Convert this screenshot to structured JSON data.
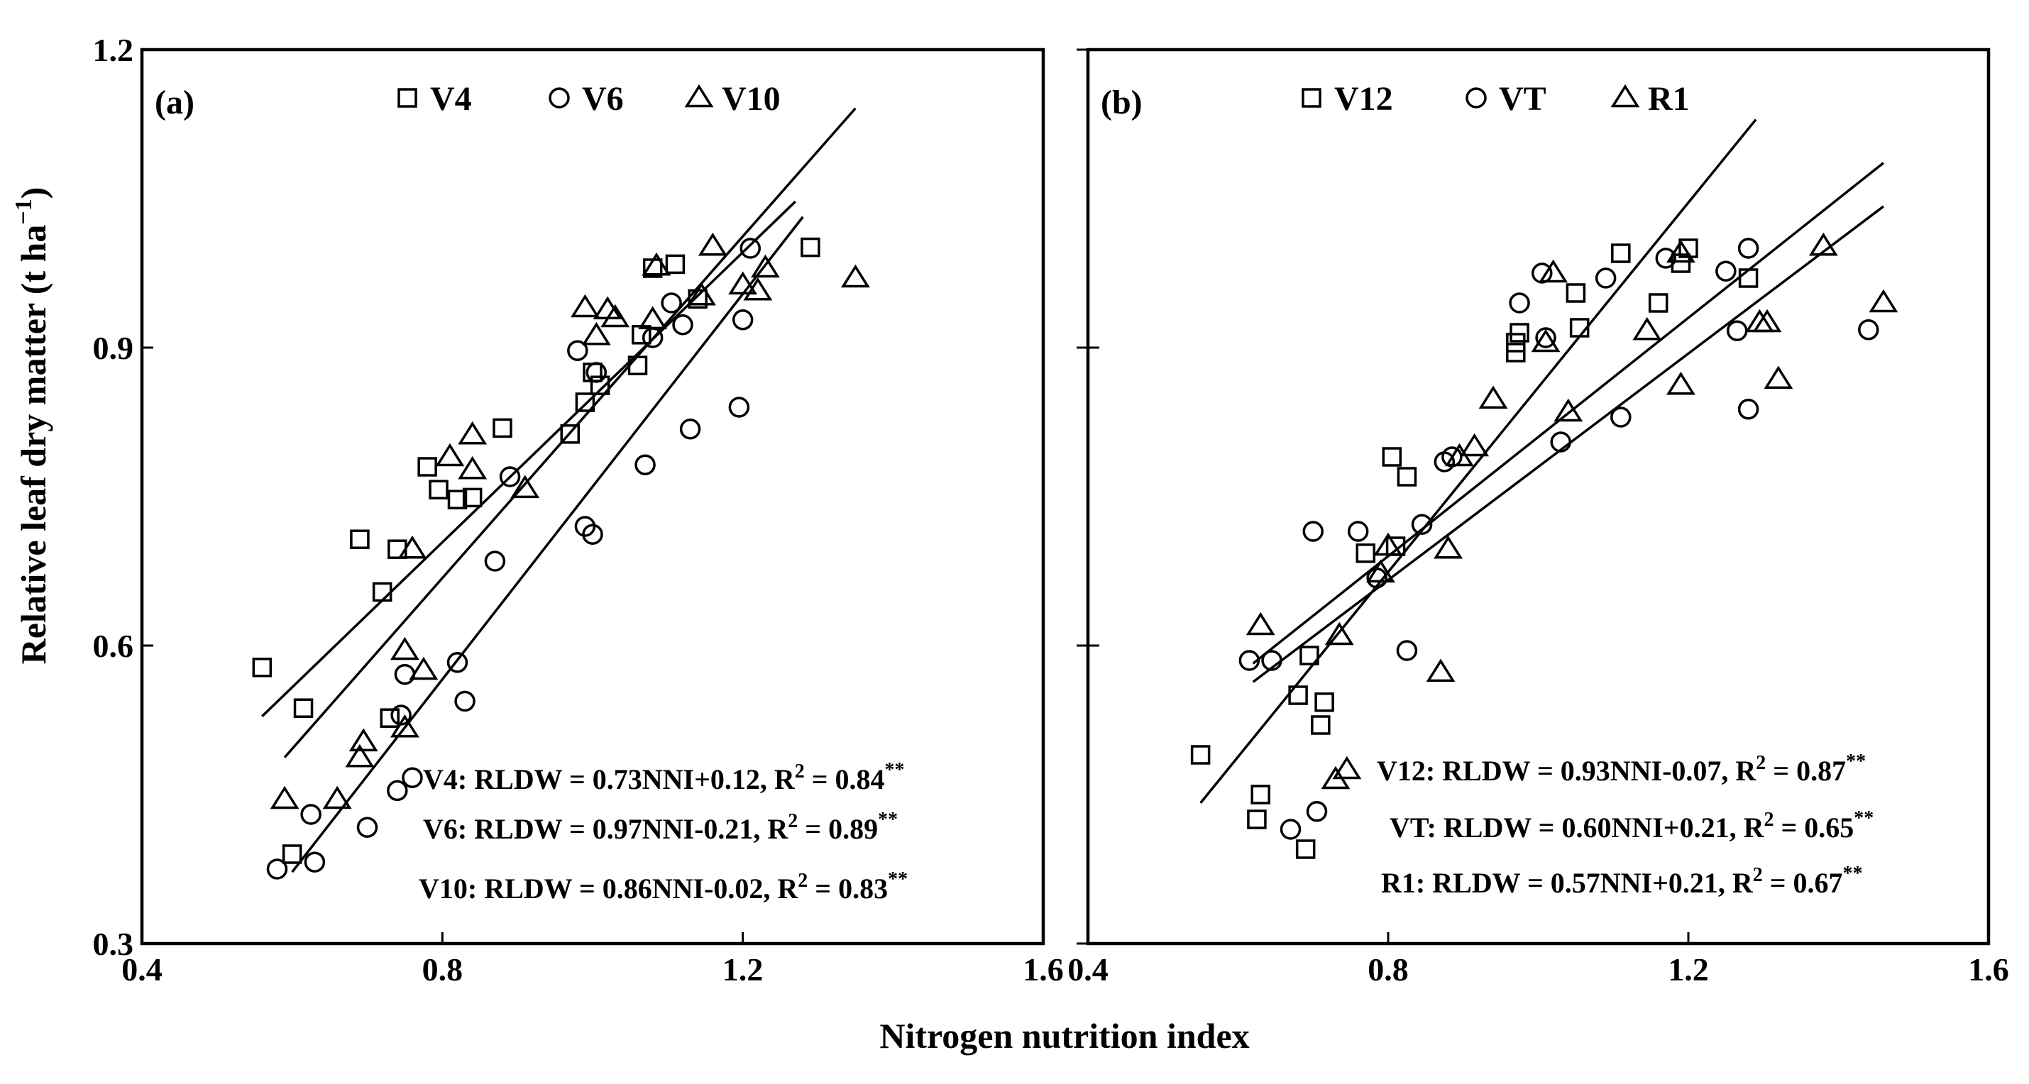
{
  "figure": {
    "xlabel": "Nitrogen nutrition index",
    "ylabel_main": "Relative leaf dry matter (t ha",
    "ylabel_sup": "−1",
    "ylabel_end": ")"
  },
  "chart_data": [
    {
      "type": "scatter",
      "panel_label": "(a)",
      "xlim": [
        0.4,
        1.6
      ],
      "ylim": [
        0.3,
        1.2
      ],
      "xticks": [
        "0.4",
        "0.8",
        "1.2",
        "1.6"
      ],
      "yticks": [
        "0.3",
        "0.6",
        "0.9",
        "1.2"
      ],
      "series": [
        {
          "name": "V4",
          "marker": "square",
          "slope": 0.73,
          "intercept": 0.12,
          "fit_range": [
            0.56,
            1.27
          ],
          "equation": {
            "lhs": "V4: RLDW = 0.73NNI+0.12, R",
            "sup": "2",
            "mid": " = 0.84",
            "stars": "**"
          },
          "points": [
            [
              0.56,
              0.578
            ],
            [
              0.615,
              0.537
            ],
            [
              0.6,
              0.39
            ],
            [
              0.69,
              0.707
            ],
            [
              0.72,
              0.654
            ],
            [
              0.74,
              0.697
            ],
            [
              0.73,
              0.527
            ],
            [
              0.78,
              0.78
            ],
            [
              0.795,
              0.757
            ],
            [
              0.82,
              0.747
            ],
            [
              0.84,
              0.749
            ],
            [
              0.88,
              0.819
            ],
            [
              0.97,
              0.813
            ],
            [
              0.99,
              0.845
            ],
            [
              1.0,
              0.875
            ],
            [
              1.01,
              0.862
            ],
            [
              1.06,
              0.882
            ],
            [
              1.065,
              0.913
            ],
            [
              1.08,
              0.98
            ],
            [
              1.11,
              0.984
            ],
            [
              1.14,
              0.949
            ],
            [
              1.29,
              1.001
            ]
          ]
        },
        {
          "name": "V6",
          "marker": "circle",
          "slope": 0.97,
          "intercept": -0.21,
          "fit_range": [
            0.6,
            1.28
          ],
          "equation": {
            "lhs": "V6: RLDW = 0.97NNI-0.21, R",
            "sup": "2",
            "mid": " = 0.89",
            "stars": "**"
          },
          "points": [
            [
              0.58,
              0.375
            ],
            [
              0.625,
              0.43
            ],
            [
              0.63,
              0.382
            ],
            [
              0.7,
              0.417
            ],
            [
              0.74,
              0.454
            ],
            [
              0.745,
              0.53
            ],
            [
              0.75,
              0.571
            ],
            [
              0.76,
              0.467
            ],
            [
              0.82,
              0.583
            ],
            [
              0.83,
              0.544
            ],
            [
              0.87,
              0.685
            ],
            [
              0.89,
              0.77
            ],
            [
              0.98,
              0.897
            ],
            [
              0.99,
              0.72
            ],
            [
              1.0,
              0.712
            ],
            [
              1.005,
              0.875
            ],
            [
              1.07,
              0.782
            ],
            [
              1.08,
              0.91
            ],
            [
              1.105,
              0.945
            ],
            [
              1.12,
              0.923
            ],
            [
              1.13,
              0.818
            ],
            [
              1.195,
              0.84
            ],
            [
              1.2,
              0.928
            ],
            [
              1.21,
              1.0
            ]
          ]
        },
        {
          "name": "V10",
          "marker": "triangle",
          "slope": 0.86,
          "intercept": -0.02,
          "fit_range": [
            0.59,
            1.35
          ],
          "equation": {
            "lhs": "V10: RLDW = 0.86NNI-0.02, R",
            "sup": "2",
            "mid": " = 0.83",
            "stars": "**"
          },
          "points": [
            [
              0.59,
              0.445
            ],
            [
              0.66,
              0.445
            ],
            [
              0.69,
              0.487
            ],
            [
              0.695,
              0.503
            ],
            [
              0.75,
              0.595
            ],
            [
              0.75,
              0.517
            ],
            [
              0.76,
              0.697
            ],
            [
              0.775,
              0.575
            ],
            [
              0.81,
              0.79
            ],
            [
              0.84,
              0.812
            ],
            [
              0.84,
              0.777
            ],
            [
              0.91,
              0.758
            ],
            [
              0.99,
              0.94
            ],
            [
              1.005,
              0.912
            ],
            [
              1.02,
              0.938
            ],
            [
              1.03,
              0.93
            ],
            [
              1.08,
              0.928
            ],
            [
              1.085,
              0.982
            ],
            [
              1.145,
              0.952
            ],
            [
              1.16,
              1.002
            ],
            [
              1.2,
              0.963
            ],
            [
              1.22,
              0.957
            ],
            [
              1.23,
              0.98
            ],
            [
              1.35,
              0.97
            ]
          ]
        }
      ]
    },
    {
      "type": "scatter",
      "panel_label": "(b)",
      "xlim": [
        0.4,
        1.6
      ],
      "ylim": [
        0.3,
        1.2
      ],
      "xticks": [
        "0.4",
        "0.8",
        "1.2",
        "1.6"
      ],
      "yticks": [
        "0.3",
        "0.6",
        "0.9",
        "1.2"
      ],
      "series": [
        {
          "name": "V12",
          "marker": "square",
          "slope": 0.93,
          "intercept": -0.07,
          "fit_range": [
            0.55,
            1.29
          ],
          "equation": {
            "lhs": "V12: RLDW = 0.93NNI-0.07, R",
            "sup": "2",
            "mid": " = 0.87",
            "stars": "**"
          },
          "points": [
            [
              0.55,
              0.49
            ],
            [
              0.625,
              0.425
            ],
            [
              0.63,
              0.45
            ],
            [
              0.68,
              0.55
            ],
            [
              0.69,
              0.395
            ],
            [
              0.695,
              0.59
            ],
            [
              0.71,
              0.52
            ],
            [
              0.715,
              0.543
            ],
            [
              0.77,
              0.693
            ],
            [
              0.805,
              0.79
            ],
            [
              0.81,
              0.7
            ],
            [
              0.825,
              0.77
            ],
            [
              0.97,
              0.895
            ],
            [
              0.97,
              0.905
            ],
            [
              0.975,
              0.915
            ],
            [
              1.05,
              0.955
            ],
            [
              1.055,
              0.92
            ],
            [
              1.11,
              0.995
            ],
            [
              1.16,
              0.945
            ],
            [
              1.19,
              0.985
            ],
            [
              1.2,
              1.0
            ],
            [
              1.28,
              0.97
            ]
          ]
        },
        {
          "name": "VT",
          "marker": "circle",
          "slope": 0.6,
          "intercept": 0.21,
          "fit_range": [
            0.62,
            1.46
          ],
          "equation": {
            "lhs": "VT: RLDW = 0.60NNI+0.21, R",
            "sup": "2",
            "mid": " = 0.65",
            "stars": "**"
          },
          "points": [
            [
              0.615,
              0.585
            ],
            [
              0.645,
              0.585
            ],
            [
              0.67,
              0.415
            ],
            [
              0.7,
              0.715
            ],
            [
              0.705,
              0.433
            ],
            [
              0.76,
              0.715
            ],
            [
              0.785,
              0.668
            ],
            [
              0.825,
              0.595
            ],
            [
              0.845,
              0.722
            ],
            [
              0.875,
              0.785
            ],
            [
              0.885,
              0.79
            ],
            [
              0.975,
              0.945
            ],
            [
              1.005,
              0.975
            ],
            [
              1.01,
              0.91
            ],
            [
              1.03,
              0.805
            ],
            [
              1.09,
              0.97
            ],
            [
              1.11,
              0.83
            ],
            [
              1.17,
              0.99
            ],
            [
              1.25,
              0.977
            ],
            [
              1.265,
              0.917
            ],
            [
              1.28,
              0.838
            ],
            [
              1.28,
              1.0
            ],
            [
              1.44,
              0.918
            ]
          ]
        },
        {
          "name": "R1",
          "marker": "triangle",
          "slope": 0.57,
          "intercept": 0.21,
          "fit_range": [
            0.62,
            1.46
          ],
          "equation": {
            "lhs": "R1: RLDW = 0.57NNI+0.21, R",
            "sup": "2",
            "mid": " = 0.67",
            "stars": "**"
          },
          "points": [
            [
              0.63,
              0.62
            ],
            [
              0.73,
              0.465
            ],
            [
              0.735,
              0.61
            ],
            [
              0.745,
              0.475
            ],
            [
              0.79,
              0.673
            ],
            [
              0.8,
              0.7
            ],
            [
              0.87,
              0.573
            ],
            [
              0.88,
              0.697
            ],
            [
              0.895,
              0.79
            ],
            [
              0.915,
              0.8
            ],
            [
              0.94,
              0.848
            ],
            [
              1.01,
              0.905
            ],
            [
              1.02,
              0.975
            ],
            [
              1.04,
              0.835
            ],
            [
              1.145,
              0.917
            ],
            [
              1.19,
              0.862
            ],
            [
              1.19,
              0.995
            ],
            [
              1.295,
              0.925
            ],
            [
              1.305,
              0.925
            ],
            [
              1.32,
              0.868
            ],
            [
              1.38,
              1.002
            ],
            [
              1.46,
              0.945
            ]
          ]
        }
      ]
    }
  ]
}
